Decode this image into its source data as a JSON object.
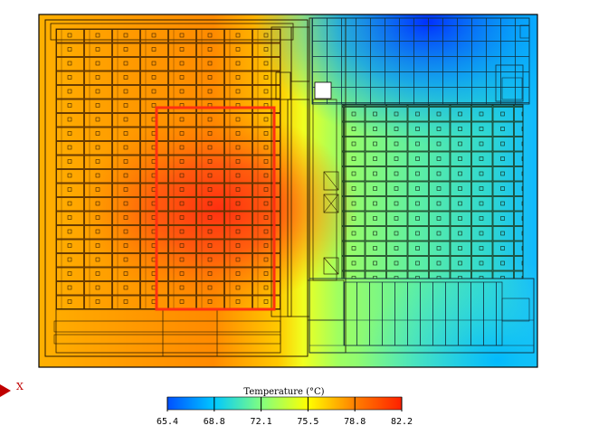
{
  "axis": {
    "x_label": "X"
  },
  "colorbar": {
    "title": "Temperature (°C)",
    "ticks": [
      "65.4",
      "68.8",
      "72.1",
      "75.5",
      "78.8",
      "82.2"
    ],
    "min": 65.4,
    "max": 82.2,
    "stops": [
      "#0050ff",
      "#00c8ff",
      "#80ff80",
      "#ffff00",
      "#ff8000",
      "#ff2000"
    ]
  },
  "hotspot_outline_color": "#ff3010"
}
